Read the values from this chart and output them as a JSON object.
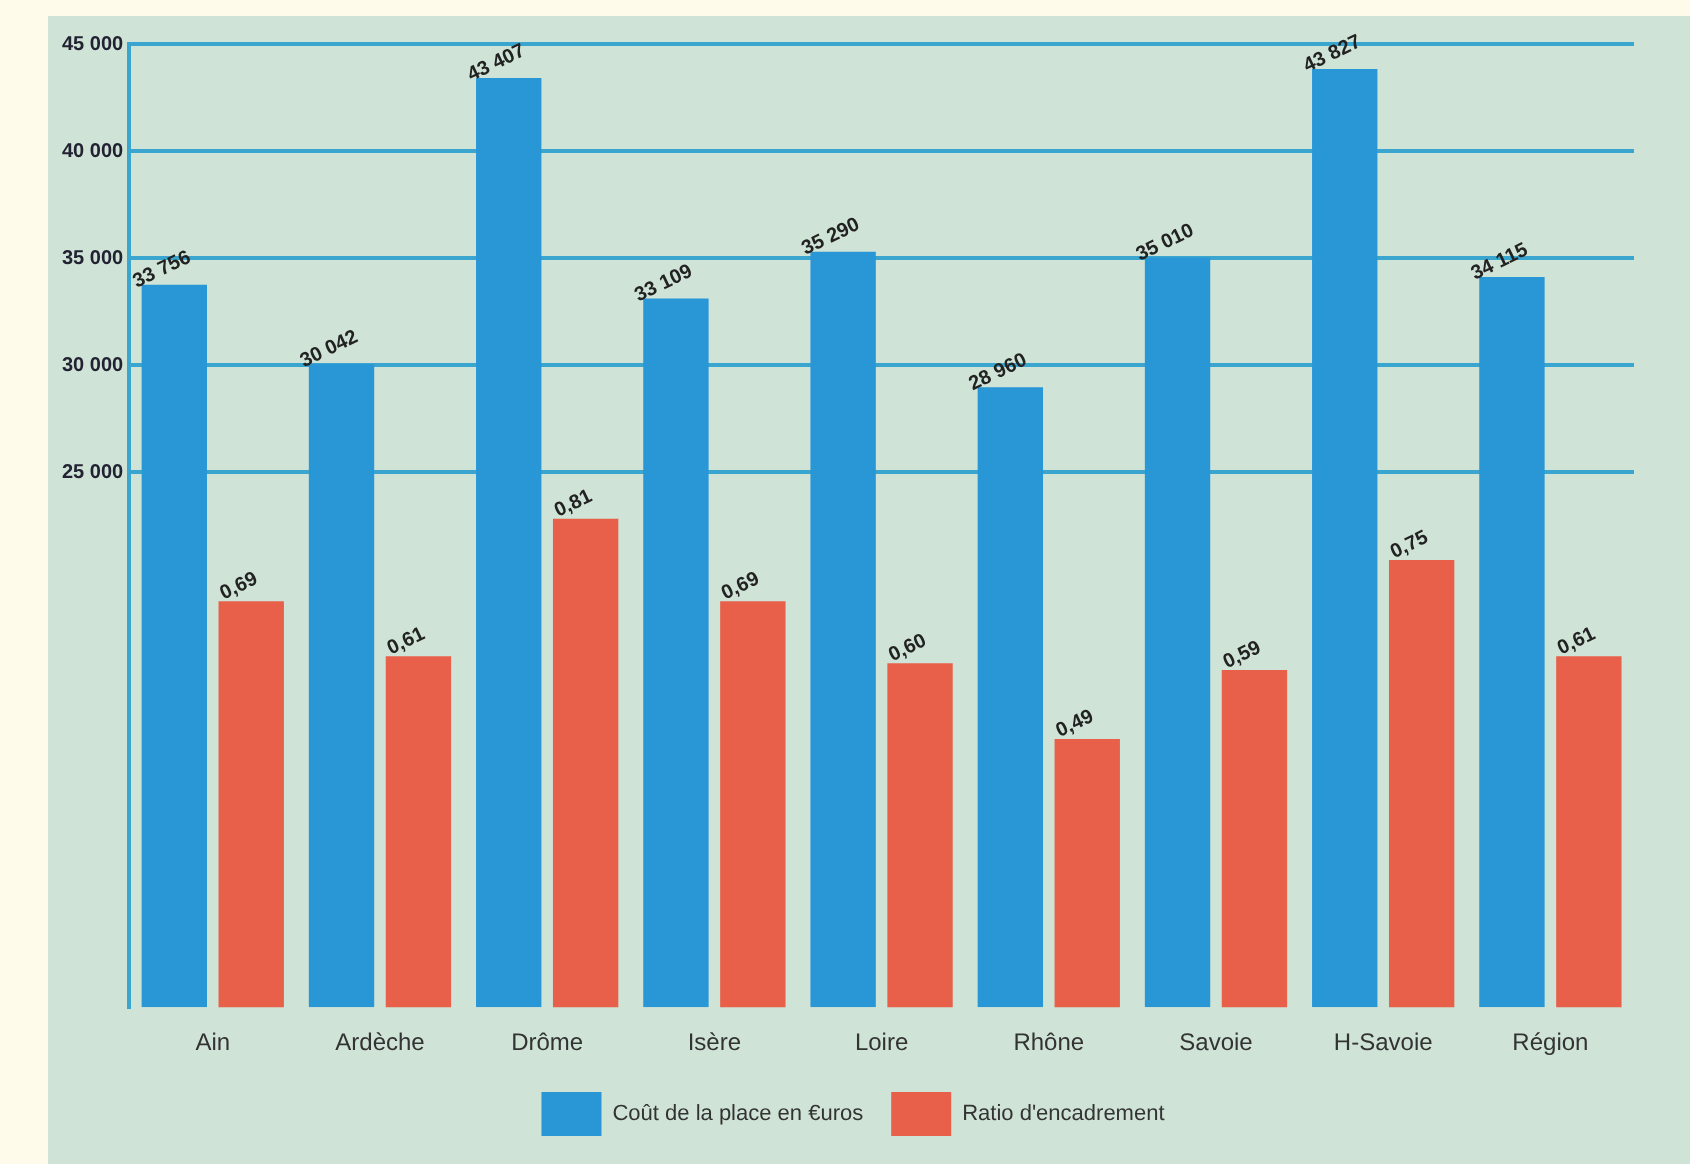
{
  "chart_data": {
    "type": "bar",
    "categories": [
      "Ain",
      "Ardèche",
      "Drôme",
      "Isère",
      "Loire",
      "Rhône",
      "Savoie",
      "H-Savoie",
      "Région"
    ],
    "series": [
      {
        "name": "Coût de la place en €uros",
        "color": "#2996d6",
        "values": [
          33756,
          30042,
          43407,
          33109,
          35290,
          28960,
          35010,
          43827,
          34115
        ],
        "value_labels": [
          "33 756",
          "30 042",
          "43 407",
          "33 109",
          "35 290",
          "28 960",
          "35 010",
          "43 827",
          "34 115"
        ]
      },
      {
        "name": "Ratio d'encadrement",
        "color": "#e8604a",
        "axis": "y2",
        "values": [
          0.69,
          0.61,
          0.81,
          0.69,
          0.6,
          0.49,
          0.59,
          0.75,
          0.61
        ],
        "value_labels": [
          "0,69",
          "0,61",
          "0,81",
          "0,69",
          "0,60",
          "0,49",
          "0,59",
          "0,75",
          "0,61"
        ]
      }
    ],
    "ylim": [
      0,
      45000
    ],
    "yticks": [
      {
        "value": 25000,
        "label": "25 000"
      },
      {
        "value": 30000,
        "label": "30 000"
      },
      {
        "value": 35000,
        "label": "35 000"
      },
      {
        "value": 40000,
        "label": "40 000"
      },
      {
        "value": 45000,
        "label": "45 000"
      }
    ],
    "y2lim": [
      0.1,
      1.5
    ],
    "grid": true,
    "legend": "bottom"
  }
}
